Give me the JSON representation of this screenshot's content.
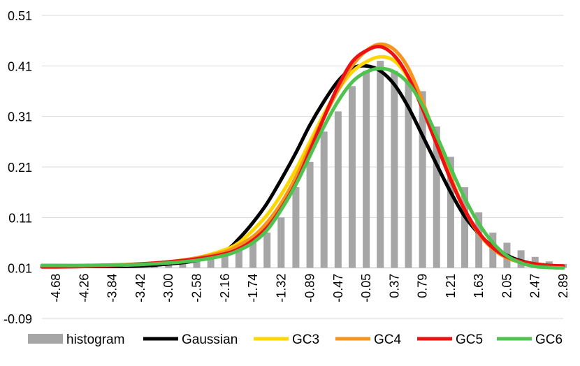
{
  "chart_data": {
    "type": "bar+line",
    "title": "",
    "xlabel": "",
    "ylabel": "",
    "ylim": [
      -0.09,
      0.51
    ],
    "yticks": [
      0.51,
      0.41,
      0.31,
      0.21,
      0.11,
      0.01,
      -0.09
    ],
    "ytick_labels": [
      "0.51",
      "0.41",
      "0.31",
      "0.21",
      "0.11",
      "0.01",
      "-0.09"
    ],
    "x_range": [
      -4.89,
      2.89
    ],
    "xtick_values": [
      -4.68,
      -4.26,
      -3.84,
      -3.42,
      -3.0,
      -2.58,
      -2.16,
      -1.74,
      -1.32,
      -0.89,
      -0.47,
      -0.05,
      0.37,
      0.79,
      1.21,
      1.63,
      2.05,
      2.47,
      2.89
    ],
    "xtick_labels": [
      "-4.68",
      "-4.26",
      "-3.84",
      "-3.42",
      "-3.00",
      "-2.58",
      "-2.16",
      "-1.74",
      "-1.32",
      "-0.89",
      "-0.47",
      "-0.05",
      "0.37",
      "0.79",
      "1.21",
      "1.63",
      "2.05",
      "2.47",
      "2.89"
    ],
    "histogram": {
      "name": "histogram",
      "color": "#a6a6a6",
      "x": [
        -4.68,
        -4.47,
        -4.26,
        -4.05,
        -3.84,
        -3.63,
        -3.42,
        -3.21,
        -3.0,
        -2.79,
        -2.58,
        -2.37,
        -2.16,
        -1.95,
        -1.74,
        -1.53,
        -1.32,
        -1.1,
        -0.89,
        -0.68,
        -0.47,
        -0.26,
        -0.05,
        0.16,
        0.37,
        0.58,
        0.79,
        1.0,
        1.21,
        1.42,
        1.63,
        1.84,
        2.05,
        2.26,
        2.47,
        2.68,
        2.89
      ],
      "values": [
        0.003,
        0.003,
        0.004,
        0.004,
        0.005,
        0.006,
        0.007,
        0.009,
        0.011,
        0.013,
        0.016,
        0.02,
        0.026,
        0.035,
        0.05,
        0.07,
        0.1,
        0.16,
        0.21,
        0.27,
        0.31,
        0.36,
        0.39,
        0.41,
        0.39,
        0.37,
        0.35,
        0.28,
        0.22,
        0.16,
        0.11,
        0.07,
        0.05,
        0.035,
        0.022,
        0.013,
        0.008
      ]
    },
    "series": [
      {
        "name": "Gaussian",
        "color": "#000000",
        "x": [
          -4.89,
          -4.68,
          -4.26,
          -3.84,
          -3.42,
          -3.0,
          -2.58,
          -2.16,
          -1.95,
          -1.74,
          -1.53,
          -1.32,
          -1.1,
          -0.89,
          -0.68,
          -0.47,
          -0.26,
          -0.05,
          0.16,
          0.37,
          0.58,
          0.79,
          1.0,
          1.21,
          1.42,
          1.63,
          1.84,
          2.05,
          2.26,
          2.47,
          2.68,
          2.89
        ],
        "values": [
          0.003,
          0.003,
          0.003,
          0.003,
          0.004,
          0.008,
          0.015,
          0.034,
          0.058,
          0.09,
          0.128,
          0.175,
          0.228,
          0.283,
          0.33,
          0.37,
          0.395,
          0.4,
          0.39,
          0.363,
          0.318,
          0.262,
          0.205,
          0.15,
          0.102,
          0.068,
          0.042,
          0.025,
          0.014,
          0.008,
          0.005,
          0.003
        ]
      },
      {
        "name": "GC3",
        "color": "#ffd700",
        "x": [
          -4.89,
          -4.68,
          -4.26,
          -3.84,
          -3.42,
          -3.0,
          -2.58,
          -2.16,
          -1.95,
          -1.74,
          -1.53,
          -1.32,
          -1.1,
          -0.89,
          -0.68,
          -0.47,
          -0.26,
          -0.05,
          0.16,
          0.37,
          0.58,
          0.79,
          1.0,
          1.21,
          1.42,
          1.63,
          1.84,
          2.05,
          2.26,
          2.47,
          2.68,
          2.89
        ],
        "values": [
          0.004,
          0.004,
          0.005,
          0.006,
          0.008,
          0.012,
          0.02,
          0.036,
          0.05,
          0.075,
          0.105,
          0.145,
          0.195,
          0.25,
          0.305,
          0.352,
          0.388,
          0.408,
          0.418,
          0.41,
          0.375,
          0.315,
          0.245,
          0.175,
          0.115,
          0.07,
          0.04,
          0.02,
          0.011,
          0.006,
          0.004,
          0.002
        ]
      },
      {
        "name": "GC4",
        "color": "#f7941d",
        "x": [
          -4.89,
          -4.68,
          -4.26,
          -3.84,
          -3.42,
          -3.0,
          -2.58,
          -2.16,
          -1.95,
          -1.74,
          -1.53,
          -1.32,
          -1.1,
          -0.89,
          -0.68,
          -0.47,
          -0.26,
          -0.05,
          0.16,
          0.37,
          0.58,
          0.79,
          1.0,
          1.21,
          1.42,
          1.63,
          1.84,
          2.05,
          2.26,
          2.47,
          2.68,
          2.89
        ],
        "values": [
          0.003,
          0.003,
          0.004,
          0.005,
          0.007,
          0.012,
          0.02,
          0.032,
          0.045,
          0.062,
          0.09,
          0.128,
          0.18,
          0.24,
          0.298,
          0.352,
          0.4,
          0.43,
          0.443,
          0.432,
          0.395,
          0.33,
          0.255,
          0.18,
          0.115,
          0.068,
          0.038,
          0.02,
          0.012,
          0.008,
          0.005,
          0.004
        ]
      },
      {
        "name": "GC5",
        "color": "#ee1111",
        "x": [
          -4.89,
          -4.68,
          -4.26,
          -3.84,
          -3.42,
          -3.0,
          -2.58,
          -2.16,
          -1.95,
          -1.74,
          -1.53,
          -1.32,
          -1.1,
          -0.89,
          -0.68,
          -0.47,
          -0.26,
          -0.05,
          0.16,
          0.37,
          0.58,
          0.79,
          1.0,
          1.21,
          1.42,
          1.63,
          1.84,
          2.05,
          2.26,
          2.47,
          2.68,
          2.89
        ],
        "values": [
          0.002,
          0.002,
          0.003,
          0.005,
          0.008,
          0.012,
          0.018,
          0.028,
          0.038,
          0.055,
          0.08,
          0.118,
          0.168,
          0.232,
          0.298,
          0.36,
          0.408,
          0.43,
          0.438,
          0.42,
          0.378,
          0.315,
          0.245,
          0.175,
          0.115,
          0.07,
          0.04,
          0.022,
          0.013,
          0.008,
          0.005,
          0.004
        ]
      },
      {
        "name": "GC6",
        "color": "#4fc24f",
        "x": [
          -4.89,
          -4.68,
          -4.26,
          -3.84,
          -3.42,
          -3.0,
          -2.58,
          -2.16,
          -1.95,
          -1.74,
          -1.53,
          -1.32,
          -1.1,
          -0.89,
          -0.68,
          -0.47,
          -0.26,
          -0.05,
          0.16,
          0.37,
          0.58,
          0.79,
          1.0,
          1.21,
          1.42,
          1.63,
          1.84,
          2.05,
          2.26,
          2.47,
          2.68,
          2.89
        ],
        "values": [
          0.005,
          0.005,
          0.005,
          0.006,
          0.007,
          0.01,
          0.015,
          0.025,
          0.035,
          0.05,
          0.075,
          0.115,
          0.165,
          0.222,
          0.28,
          0.33,
          0.368,
          0.388,
          0.395,
          0.388,
          0.365,
          0.322,
          0.262,
          0.198,
          0.138,
          0.088,
          0.05,
          0.024,
          0.01,
          0.003,
          0.001,
          0.0
        ]
      }
    ],
    "legend": {
      "position": "bottom",
      "items": [
        "histogram",
        "Gaussian",
        "GC3",
        "GC4",
        "GC5",
        "GC6"
      ]
    },
    "grid": true
  }
}
